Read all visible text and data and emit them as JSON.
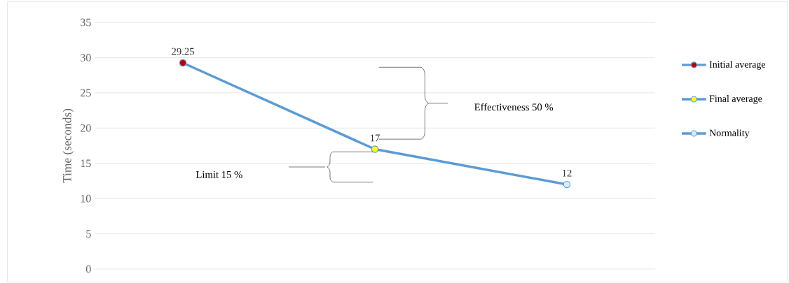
{
  "chart_data": {
    "type": "line",
    "ylabel": "Time (seconds)",
    "categories": [
      null,
      null,
      null
    ],
    "series": [
      {
        "color": "#5b9bd5",
        "values": [
          29.25,
          17,
          12
        ]
      },
      {
        "type": "scatter",
        "name": "Initial average",
        "color": "#c00000",
        "marker": "circle",
        "values": [
          29.25,
          null,
          null
        ],
        "value_labels": [
          "29.25",
          null,
          null
        ]
      },
      {
        "type": "scatter",
        "name": "Final average",
        "color": "#ffff00",
        "marker": "circle",
        "values": [
          null,
          17,
          null
        ],
        "value_labels": [
          null,
          "17",
          null
        ]
      },
      {
        "type": "scatter",
        "name": "Normality",
        "color": "#ddeaf6",
        "marker": "circle",
        "values": [
          null,
          null,
          12
        ],
        "value_labels": [
          null,
          null,
          "12"
        ]
      }
    ],
    "ylim": [
      0,
      35
    ],
    "yticks": [
      0,
      5,
      10,
      15,
      20,
      25,
      30,
      35
    ],
    "grid": "y",
    "legend": "right",
    "annotations": [
      "Effectiveness 50 %",
      "Limit 15 %"
    ]
  }
}
